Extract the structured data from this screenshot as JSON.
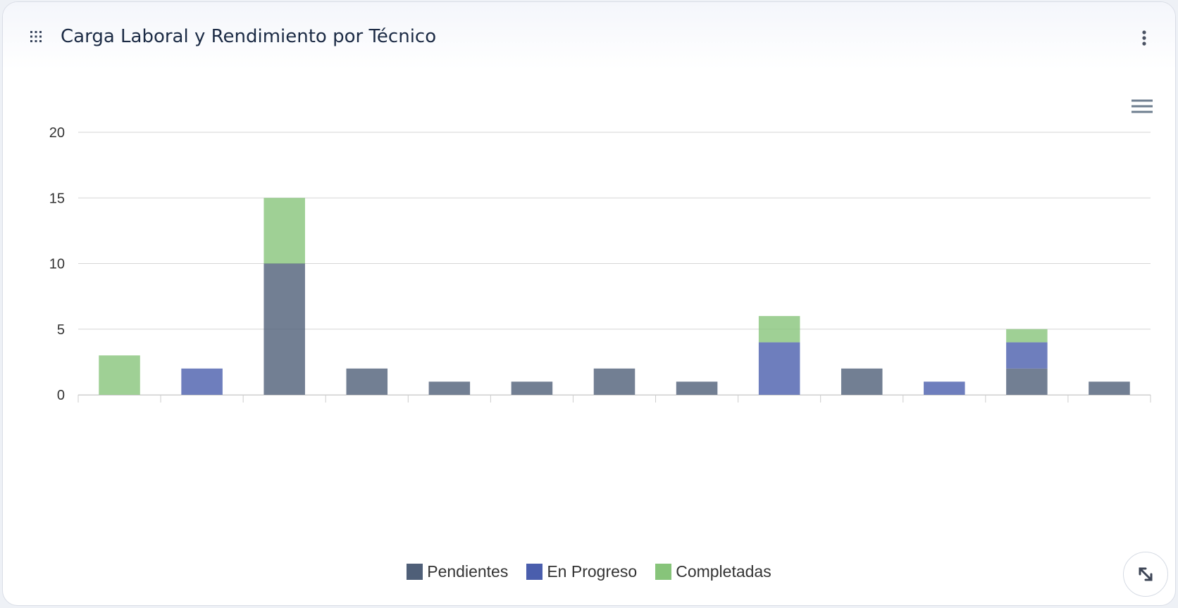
{
  "widget": {
    "title": "Carga Laboral y Rendimiento por Técnico",
    "icons": {
      "drag": "drag-handle-icon",
      "more": "more-vertical-icon",
      "chart_menu": "hamburger-menu-icon",
      "expand": "expand-arrows-icon"
    }
  },
  "chart_data": {
    "type": "bar",
    "stacked": true,
    "categories": [
      "",
      "",
      "",
      "",
      "",
      "",
      "",
      "",
      "",
      "",
      "",
      "",
      ""
    ],
    "series": [
      {
        "name": "Pendientes",
        "color": "#4f5f78",
        "values": [
          0,
          0,
          10,
          2,
          1,
          1,
          2,
          1,
          0,
          2,
          0,
          2,
          1
        ]
      },
      {
        "name": "En Progreso",
        "color": "#4a5ead",
        "values": [
          0,
          2,
          0,
          0,
          0,
          0,
          0,
          0,
          4,
          0,
          1,
          2,
          0
        ]
      },
      {
        "name": "Completadas",
        "color": "#87c47a",
        "values": [
          3,
          0,
          5,
          0,
          0,
          0,
          0,
          0,
          2,
          0,
          0,
          1,
          0
        ]
      }
    ],
    "ylim": [
      0,
      20
    ],
    "yticks": [
      "0",
      "5",
      "10",
      "15",
      "20"
    ],
    "grid": true,
    "legend_position": "bottom-center",
    "bar_opacity": 0.8
  }
}
